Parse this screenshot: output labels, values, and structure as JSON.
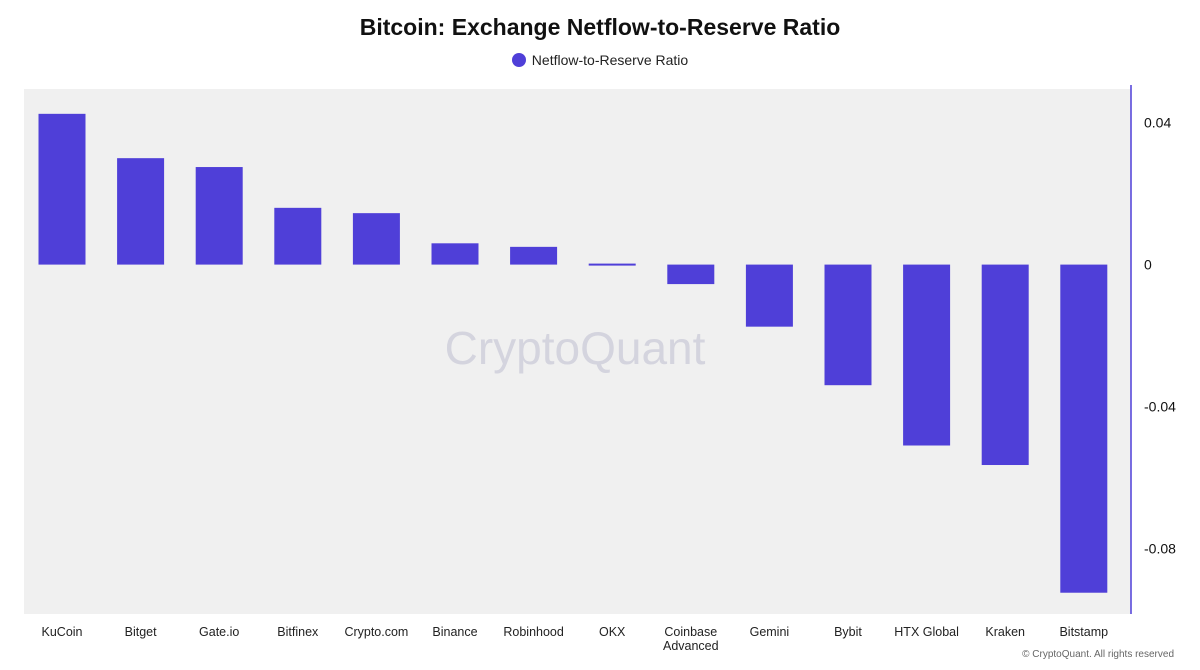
{
  "chart_data": {
    "type": "bar",
    "title": "Bitcoin: Exchange Netflow-to-Reserve Ratio",
    "legend": {
      "position": "top-center"
    },
    "series": [
      {
        "name": "Netflow-to-Reserve Ratio",
        "color": "#4f3fd8",
        "values": [
          0.0425,
          0.03,
          0.0275,
          0.016,
          0.0145,
          0.006,
          0.005,
          -0.0005,
          -0.0055,
          -0.0175,
          -0.034,
          -0.051,
          -0.0565,
          -0.0925
        ]
      }
    ],
    "categories": [
      "KuCoin",
      "Bitget",
      "Gate.io",
      "Bitfinex",
      "Crypto.com",
      "Binance",
      "Robinhood",
      "OKX",
      "Coinbase Advanced",
      "Gemini",
      "Bybit",
      "HTX Global",
      "Kraken",
      "Bitstamp"
    ],
    "yticks": [
      0.04,
      0,
      -0.04,
      -0.08
    ],
    "ytick_labels": [
      "0.04",
      "0",
      "-0.04",
      "-0.08"
    ],
    "ylim": [
      -0.0985,
      0.0495
    ],
    "yaxis_side": "right",
    "grid": false,
    "background_color": "#f0f0f0",
    "axis_color": "#4f3fd8",
    "watermark": "CryptoQuant",
    "footer": "© CryptoQuant. All rights reserved"
  }
}
